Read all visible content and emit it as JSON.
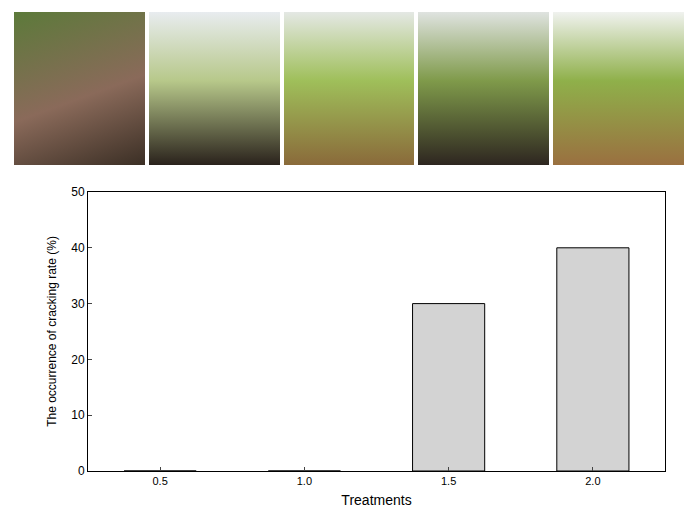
{
  "chart_data": {
    "type": "bar",
    "categories": [
      "0.5",
      "1.0",
      "1.5",
      "2.0"
    ],
    "values": [
      0,
      0,
      30,
      40
    ],
    "color": "#d3d3d3",
    "x_label": "Treatments",
    "y_label": "The occurrence of cracking rate (%)",
    "ylim": [
      0,
      50
    ],
    "yticks": [
      0,
      10,
      20,
      30,
      40,
      50
    ],
    "grid": false
  }
}
